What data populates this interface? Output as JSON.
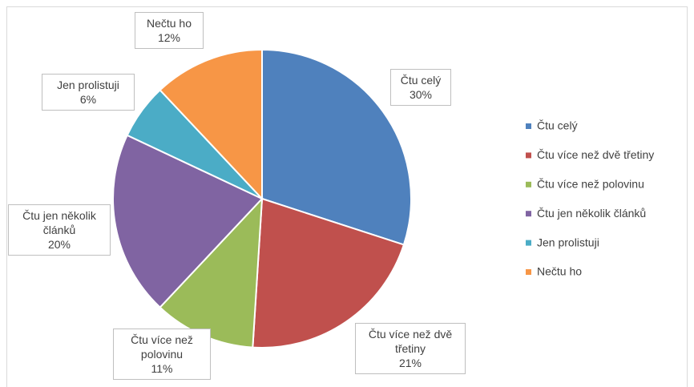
{
  "chart_data": {
    "type": "pie",
    "categories": [
      "Čtu celý",
      "Čtu více než dvě třetiny",
      "Čtu více než polovinu",
      "Čtu jen několik článků",
      "Jen prolistuji",
      "Nečtu ho"
    ],
    "values": [
      30,
      21,
      11,
      20,
      6,
      12
    ],
    "value_labels": [
      "30%",
      "21%",
      "11%",
      "20%",
      "6%",
      "12%"
    ],
    "colors": [
      "#4f81bd",
      "#c0504d",
      "#9bbb59",
      "#8064a2",
      "#4bacc6",
      "#f79646"
    ],
    "legend": "right"
  }
}
